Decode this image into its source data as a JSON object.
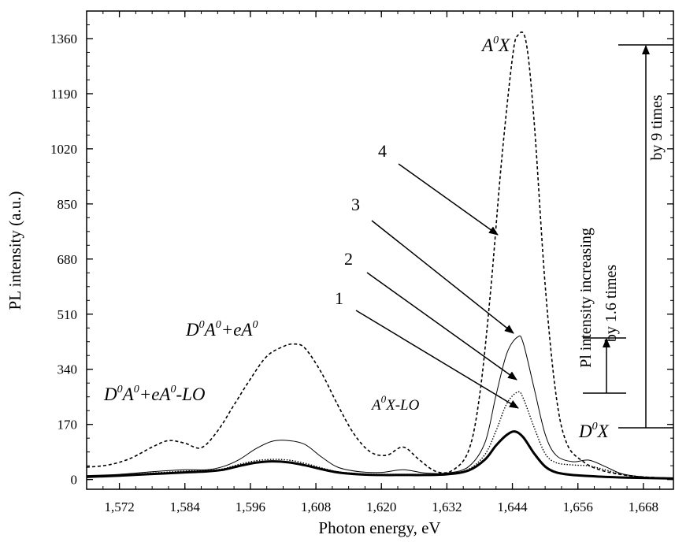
{
  "chart_data": {
    "type": "line",
    "xlabel": "Photon energy, eV",
    "ylabel": "PL intensity (a.u.)",
    "xlim": [
      1.566,
      1.6735
    ],
    "ylim": [
      -30,
      1445
    ],
    "x_ticks": [
      1.572,
      1.584,
      1.596,
      1.608,
      1.62,
      1.632,
      1.644,
      1.656,
      1.668
    ],
    "x_tick_labels": [
      "1,572",
      "1,584",
      "1,596",
      "1,608",
      "1,620",
      "1,632",
      "1,644",
      "1,656",
      "1,668"
    ],
    "y_ticks": [
      0,
      170,
      340,
      510,
      680,
      850,
      1020,
      1190,
      1360
    ],
    "y_tick_labels": [
      "0",
      "170",
      "340",
      "510",
      "680",
      "850",
      "1020",
      "1190",
      "1360"
    ],
    "grid": false,
    "series": [
      {
        "name": "1",
        "style": "solid-thick",
        "x": [
          1.566,
          1.572,
          1.578,
          1.584,
          1.588,
          1.591,
          1.594,
          1.597,
          1.6,
          1.603,
          1.606,
          1.609,
          1.612,
          1.616,
          1.62,
          1.624,
          1.628,
          1.632,
          1.636,
          1.639,
          1.641,
          1.643,
          1.6445,
          1.646,
          1.648,
          1.65,
          1.652,
          1.655,
          1.66,
          1.665,
          1.6735
        ],
        "y": [
          8,
          12,
          17,
          22,
          25,
          30,
          42,
          52,
          56,
          53,
          44,
          32,
          22,
          16,
          14,
          14,
          14,
          16,
          28,
          62,
          105,
          138,
          148,
          130,
          80,
          40,
          22,
          14,
          9,
          6,
          3
        ]
      },
      {
        "name": "2",
        "style": "dotted",
        "x": [
          1.566,
          1.572,
          1.578,
          1.584,
          1.588,
          1.591,
          1.594,
          1.597,
          1.6,
          1.603,
          1.606,
          1.609,
          1.612,
          1.616,
          1.62,
          1.624,
          1.628,
          1.632,
          1.636,
          1.639,
          1.641,
          1.643,
          1.645,
          1.646,
          1.648,
          1.65,
          1.652,
          1.655,
          1.658,
          1.661,
          1.664,
          1.668,
          1.6735
        ],
        "y": [
          10,
          14,
          20,
          26,
          28,
          33,
          47,
          58,
          62,
          60,
          50,
          36,
          24,
          18,
          16,
          16,
          16,
          18,
          32,
          78,
          150,
          235,
          270,
          250,
          160,
          80,
          52,
          45,
          42,
          30,
          16,
          8,
          4
        ]
      },
      {
        "name": "3",
        "style": "solid-thin",
        "x": [
          1.566,
          1.572,
          1.578,
          1.584,
          1.588,
          1.591,
          1.594,
          1.597,
          1.6,
          1.603,
          1.606,
          1.609,
          1.612,
          1.616,
          1.62,
          1.624,
          1.628,
          1.632,
          1.636,
          1.639,
          1.641,
          1.643,
          1.645,
          1.646,
          1.648,
          1.65,
          1.652,
          1.655,
          1.658,
          1.661,
          1.664,
          1.668,
          1.6735
        ],
        "y": [
          12,
          16,
          24,
          30,
          30,
          40,
          62,
          95,
          118,
          120,
          108,
          70,
          38,
          24,
          22,
          30,
          20,
          20,
          40,
          115,
          260,
          390,
          440,
          420,
          280,
          140,
          75,
          55,
          60,
          40,
          18,
          8,
          4
        ]
      },
      {
        "name": "4",
        "style": "dashed",
        "x": [
          1.566,
          1.57,
          1.574,
          1.578,
          1.581,
          1.584,
          1.587,
          1.59,
          1.593,
          1.596,
          1.599,
          1.602,
          1.604,
          1.606,
          1.609,
          1.612,
          1.615,
          1.618,
          1.621,
          1.624,
          1.627,
          1.63,
          1.633,
          1.636,
          1.638,
          1.64,
          1.642,
          1.644,
          1.645,
          1.6465,
          1.648,
          1.65,
          1.652,
          1.654,
          1.657,
          1.66,
          1.664,
          1.668,
          1.6735
        ],
        "y": [
          38,
          45,
          65,
          100,
          120,
          112,
          98,
          150,
          230,
          310,
          380,
          410,
          418,
          405,
          330,
          230,
          140,
          85,
          75,
          100,
          60,
          25,
          28,
          90,
          260,
          580,
          980,
          1300,
          1370,
          1350,
          1100,
          600,
          260,
          110,
          55,
          30,
          15,
          8,
          4
        ]
      }
    ],
    "annotations": {
      "label_a0x": "A",
      "label_a0x_sup": "0",
      "label_a0x_x": "X",
      "label_d0x": "D",
      "label_d0x_sup": "0",
      "label_d0x_x": "X",
      "label_dap": "D",
      "label_dap_sup1": "0",
      "label_dap_mid": "A",
      "label_dap_sup2": "0",
      "label_dap_tail": "+eA",
      "label_dap_sup3": "0",
      "label_daplo": "D",
      "label_daplo_sup1": "0",
      "label_daplo_mid": "A",
      "label_daplo_sup2": "0",
      "label_daplo_tail": "+eA",
      "label_daplo_sup3": "0",
      "label_daplo_end": "-LO",
      "label_axlo": "A",
      "label_axlo_sup": "0",
      "label_axlo_tail": "X-LO",
      "curve_labels": [
        "1",
        "2",
        "3",
        "4"
      ],
      "rotated_texts": [
        "Pl intensity increasing",
        "by 1.6  times",
        "by 9  times"
      ]
    }
  }
}
